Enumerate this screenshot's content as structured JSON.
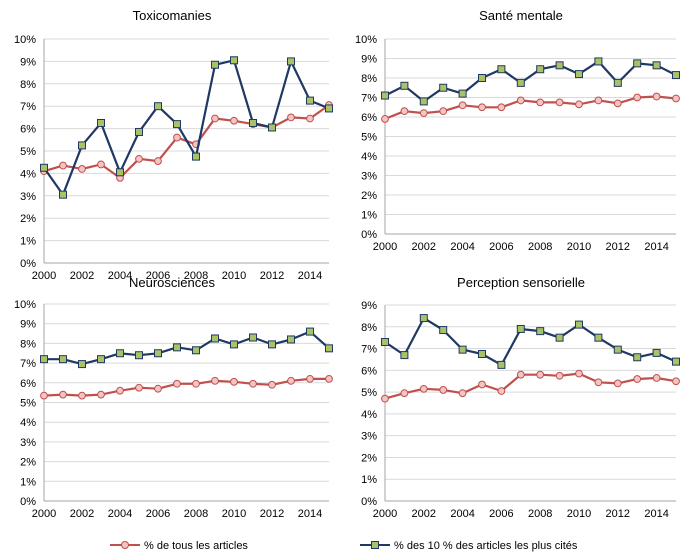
{
  "colors": {
    "all_articles": "#c0504d",
    "top10": "#1f3864",
    "marker_fill_all": "#f2c4c4",
    "marker_fill_top": "#a9c266"
  },
  "legend": {
    "all_articles": "% de tous les articles",
    "top10": "% des 10 % des articles les plus cités"
  },
  "chart_data": [
    {
      "type": "line",
      "title": "Toxicomanies",
      "x": [
        2000,
        2001,
        2002,
        2003,
        2004,
        2005,
        2006,
        2007,
        2008,
        2009,
        2010,
        2011,
        2012,
        2013,
        2014,
        2015
      ],
      "ylim": [
        0,
        10
      ],
      "yticks": [
        "0%",
        "1%",
        "2%",
        "3%",
        "4%",
        "5%",
        "6%",
        "7%",
        "8%",
        "9%",
        "10%"
      ],
      "xticks": [
        "2000",
        "2002",
        "2004",
        "2006",
        "2008",
        "2010",
        "2012",
        "2014"
      ],
      "series": [
        {
          "name": "% de tous les articles",
          "values": [
            4.1,
            4.35,
            4.2,
            4.4,
            3.8,
            4.65,
            4.55,
            5.6,
            5.3,
            6.45,
            6.35,
            6.2,
            6.05,
            6.5,
            6.45,
            7.05
          ]
        },
        {
          "name": "% des 10 % des articles les plus cités",
          "values": [
            4.25,
            3.05,
            5.25,
            6.25,
            4.05,
            5.85,
            7.0,
            6.2,
            4.75,
            8.85,
            9.05,
            6.25,
            6.05,
            9.0,
            7.25,
            6.9
          ]
        }
      ]
    },
    {
      "type": "line",
      "title": "Santé mentale",
      "x": [
        2000,
        2001,
        2002,
        2003,
        2004,
        2005,
        2006,
        2007,
        2008,
        2009,
        2010,
        2011,
        2012,
        2013,
        2014,
        2015
      ],
      "ylim": [
        0,
        10
      ],
      "yticks": [
        "0%",
        "1%",
        "2%",
        "3%",
        "4%",
        "5%",
        "6%",
        "7%",
        "8%",
        "9%",
        "10%"
      ],
      "xticks": [
        "2000",
        "2002",
        "2004",
        "2006",
        "2008",
        "2010",
        "2012",
        "2014"
      ],
      "series": [
        {
          "name": "% de tous les articles",
          "values": [
            5.9,
            6.3,
            6.2,
            6.3,
            6.6,
            6.5,
            6.5,
            6.85,
            6.75,
            6.75,
            6.65,
            6.85,
            6.7,
            7.0,
            7.05,
            6.95
          ]
        },
        {
          "name": "% des 10 % des articles les plus cités",
          "values": [
            7.1,
            7.6,
            6.8,
            7.5,
            7.2,
            8.0,
            8.45,
            7.75,
            8.45,
            8.65,
            8.2,
            8.85,
            7.75,
            8.75,
            8.65,
            8.15
          ]
        }
      ]
    },
    {
      "type": "line",
      "title": "Neurosciences",
      "x": [
        2000,
        2001,
        2002,
        2003,
        2004,
        2005,
        2006,
        2007,
        2008,
        2009,
        2010,
        2011,
        2012,
        2013,
        2014,
        2015
      ],
      "ylim": [
        0,
        10
      ],
      "yticks": [
        "0%",
        "1%",
        "2%",
        "3%",
        "4%",
        "5%",
        "6%",
        "7%",
        "8%",
        "9%",
        "10%"
      ],
      "xticks": [
        "2000",
        "2002",
        "2004",
        "2006",
        "2008",
        "2010",
        "2012",
        "2014"
      ],
      "series": [
        {
          "name": "% de tous les articles",
          "values": [
            5.35,
            5.4,
            5.35,
            5.4,
            5.6,
            5.75,
            5.7,
            5.95,
            5.95,
            6.1,
            6.05,
            5.95,
            5.9,
            6.1,
            6.2,
            6.2
          ]
        },
        {
          "name": "% des 10 % des articles les plus cités",
          "values": [
            7.2,
            7.2,
            6.95,
            7.2,
            7.5,
            7.4,
            7.5,
            7.8,
            7.65,
            8.25,
            7.95,
            8.3,
            7.95,
            8.2,
            8.6,
            7.75
          ]
        }
      ]
    },
    {
      "type": "line",
      "title": "Perception sensorielle",
      "x": [
        2000,
        2001,
        2002,
        2003,
        2004,
        2005,
        2006,
        2007,
        2008,
        2009,
        2010,
        2011,
        2012,
        2013,
        2014,
        2015
      ],
      "ylim": [
        0,
        9
      ],
      "yticks": [
        "0%",
        "1%",
        "2%",
        "3%",
        "4%",
        "5%",
        "6%",
        "7%",
        "8%",
        "9%"
      ],
      "xticks": [
        "2000",
        "2002",
        "2004",
        "2006",
        "2008",
        "2010",
        "2012",
        "2014"
      ],
      "series": [
        {
          "name": "% de tous les articles",
          "values": [
            4.7,
            4.95,
            5.15,
            5.1,
            4.95,
            5.35,
            5.05,
            5.8,
            5.8,
            5.75,
            5.85,
            5.45,
            5.4,
            5.6,
            5.65,
            5.5
          ]
        },
        {
          "name": "% des 10 % des articles les plus cités",
          "values": [
            7.3,
            6.7,
            8.4,
            7.85,
            6.95,
            6.75,
            6.25,
            7.9,
            7.8,
            7.5,
            8.1,
            7.5,
            6.95,
            6.6,
            6.8,
            6.4
          ]
        }
      ]
    }
  ]
}
